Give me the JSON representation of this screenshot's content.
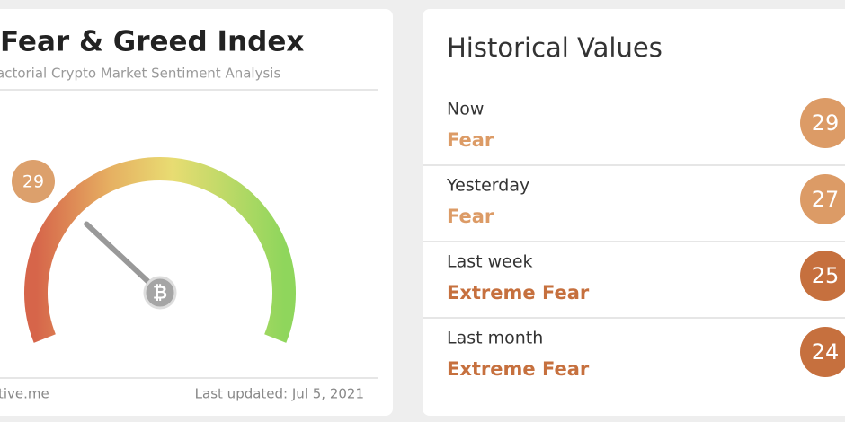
{
  "fear_greed": {
    "title": "Fear & Greed Index",
    "subtitle": "actorial Crypto Market Sentiment Analysis",
    "value": 29,
    "color": "#dca06c",
    "source": "tive.me",
    "last_updated": "Last updated: Jul 5, 2021"
  },
  "historical": {
    "title": "Historical Values",
    "rows": [
      {
        "period": "Now",
        "classification": "Fear",
        "value": 29,
        "color": "#dc9b66"
      },
      {
        "period": "Yesterday",
        "classification": "Fear",
        "value": 27,
        "color": "#dc9b66"
      },
      {
        "period": "Last week",
        "classification": "Extreme Fear",
        "value": 25,
        "color": "#c6703e"
      },
      {
        "period": "Last month",
        "classification": "Extreme Fear",
        "value": 24,
        "color": "#c6703e"
      }
    ]
  }
}
